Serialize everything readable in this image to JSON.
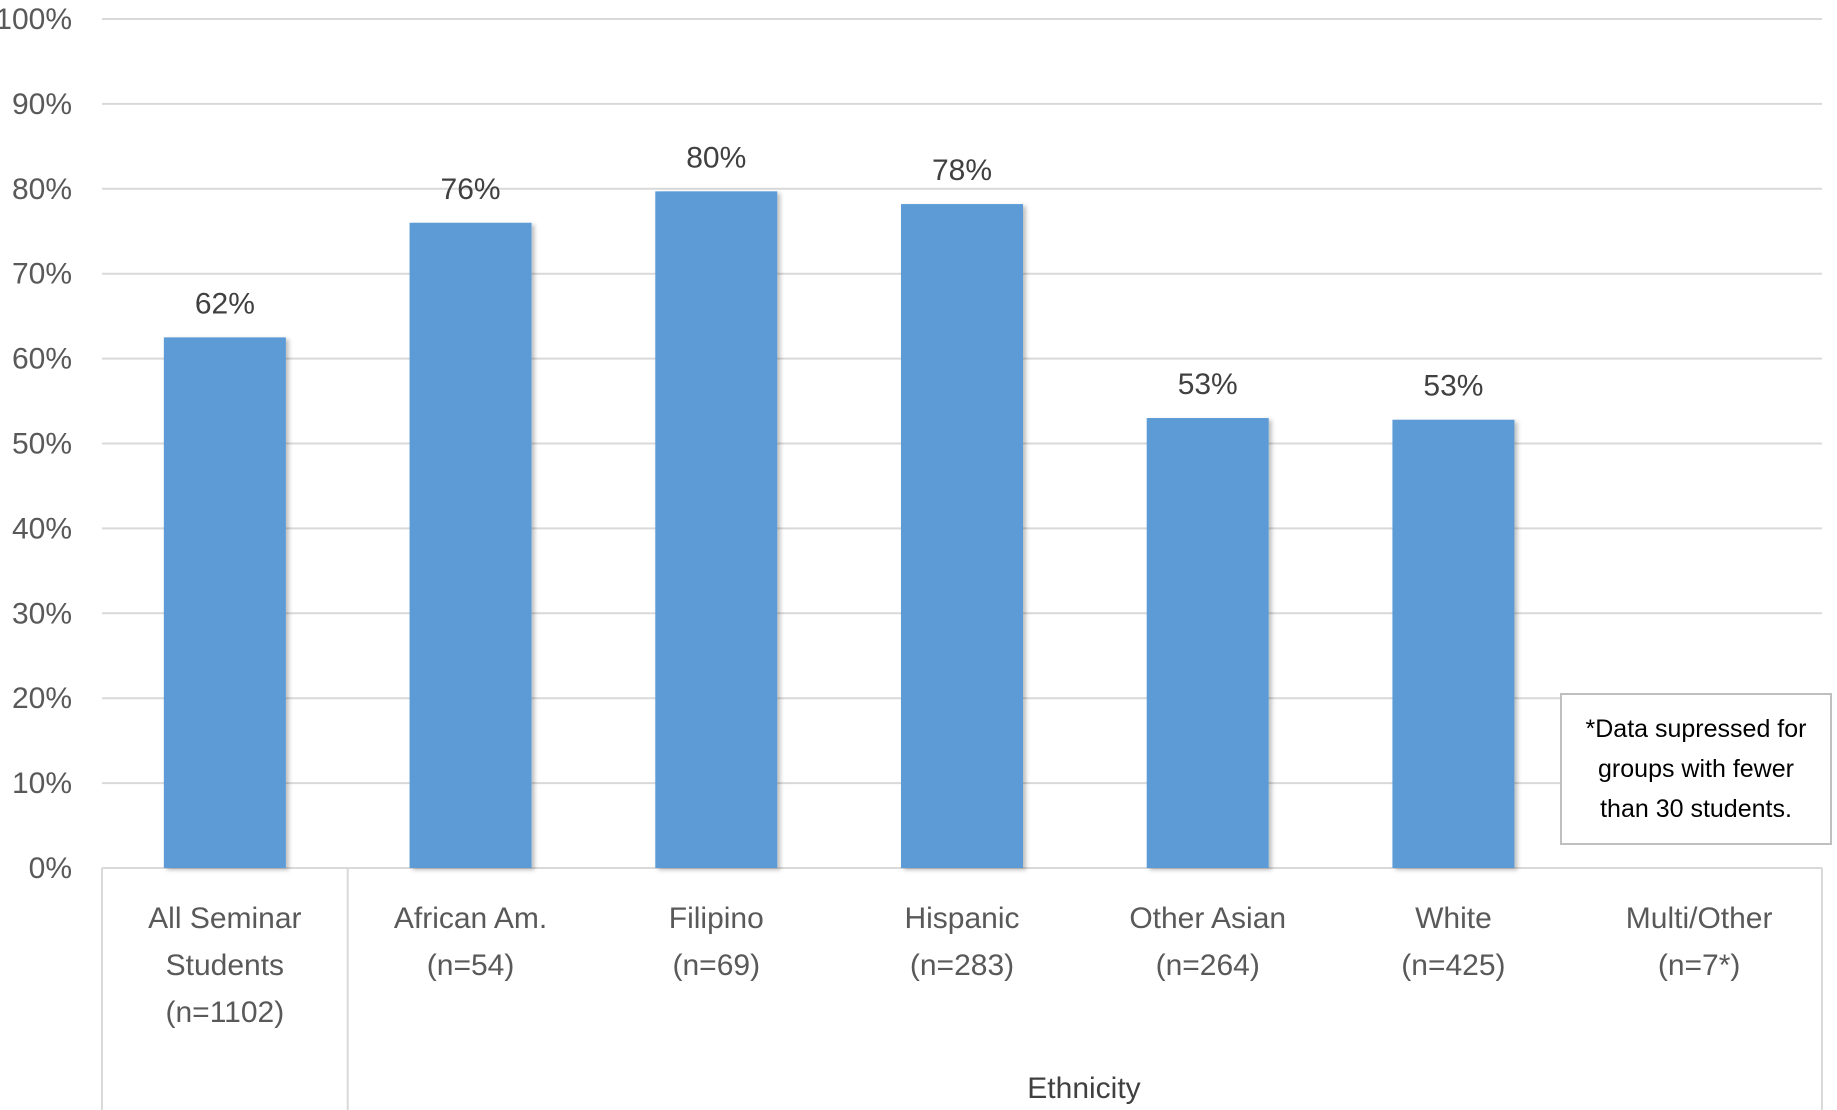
{
  "chart_data": {
    "type": "bar",
    "categories": [
      [
        "All Seminar",
        "Students",
        "(n=1102)"
      ],
      [
        "African Am.",
        "(n=54)"
      ],
      [
        "Filipino",
        "(n=69)"
      ],
      [
        "Hispanic",
        "(n=283)"
      ],
      [
        "Other Asian",
        "(n=264)"
      ],
      [
        "White",
        "(n=425)"
      ],
      [
        "Multi/Other",
        "(n=7*)"
      ]
    ],
    "values": [
      62.5,
      76,
      79.7,
      78.2,
      53,
      52.8,
      null
    ],
    "data_labels": [
      "62%",
      "76%",
      "80%",
      "78%",
      "53%",
      "53%",
      ""
    ],
    "ylim": [
      0,
      100
    ],
    "yticks": [
      "0%",
      "10%",
      "20%",
      "30%",
      "40%",
      "50%",
      "60%",
      "70%",
      "80%",
      "90%",
      "100%"
    ],
    "xlabel": "Ethnicity",
    "ylabel": "",
    "grid": true,
    "bar_color": "#5b9bd5",
    "note": "*Data supressed for groups with fewer than 30 students."
  }
}
